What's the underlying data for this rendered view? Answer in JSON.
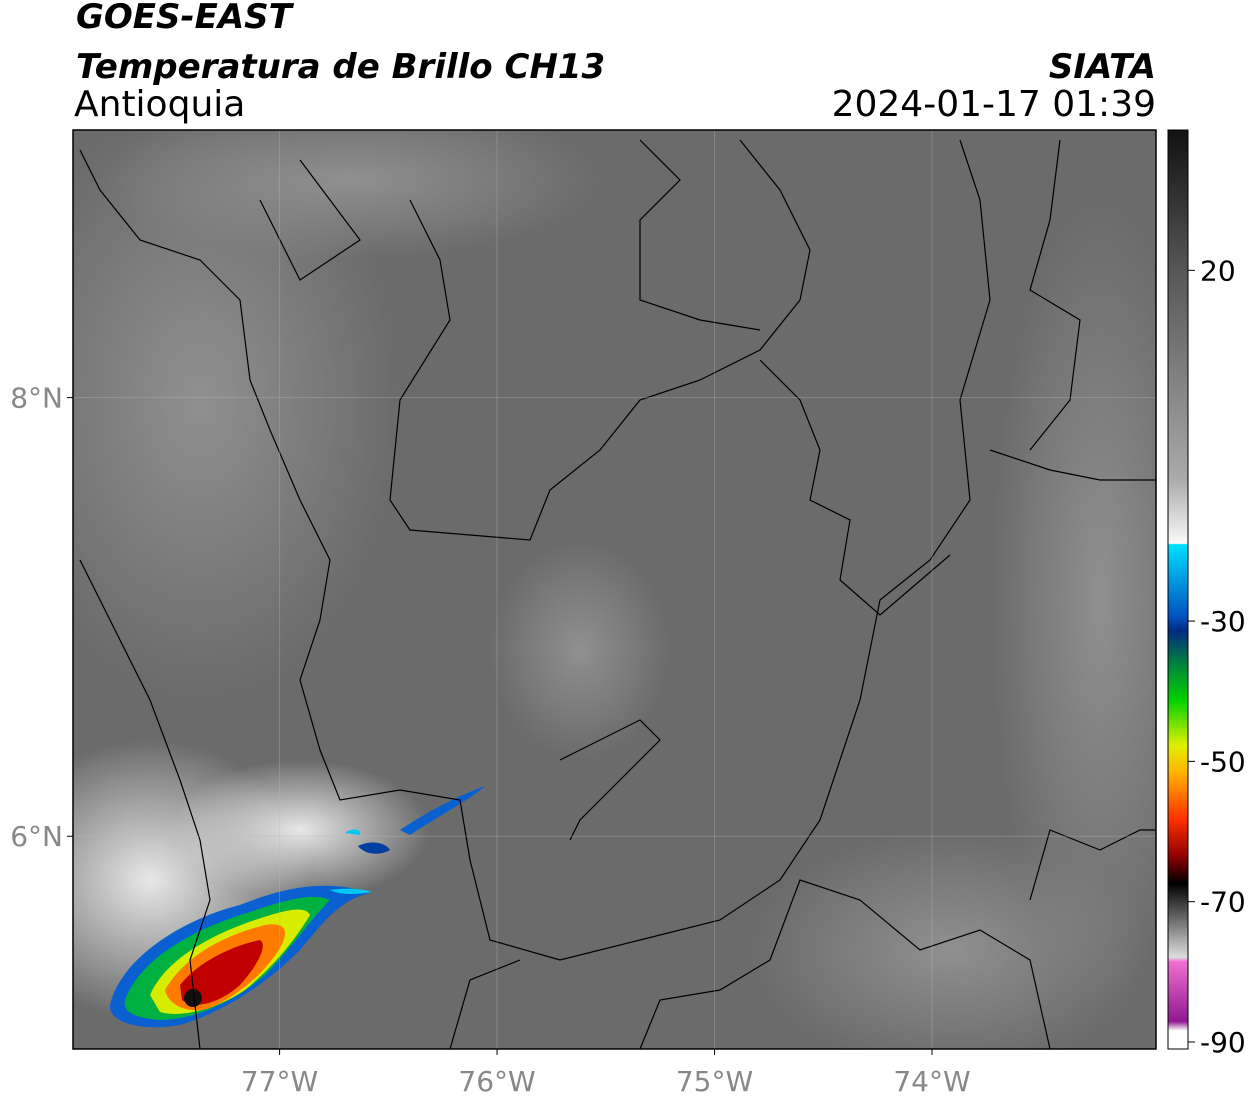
{
  "chart_data": {
    "type": "map",
    "title": "GOES-EAST",
    "subtitle": "Temperatura de Brillo CH13",
    "source": "SIATA",
    "region": "Antioquia",
    "datetime": "2024-01-17 01:39",
    "xlim": [
      -77.95,
      -72.97
    ],
    "ylim": [
      5.03,
      9.22
    ],
    "xticks": [
      {
        "value": -77,
        "label": "77°W"
      },
      {
        "value": -76,
        "label": "76°W"
      },
      {
        "value": -75,
        "label": "75°W"
      },
      {
        "value": -74,
        "label": "74°W"
      }
    ],
    "yticks": [
      {
        "value": 8,
        "label": "8°N"
      },
      {
        "value": 6,
        "label": "6°N"
      }
    ],
    "grid": true,
    "colorbar": {
      "lim": [
        -91,
        40
      ],
      "ticks": [
        20,
        -30,
        -50,
        -70,
        -90
      ]
    }
  }
}
